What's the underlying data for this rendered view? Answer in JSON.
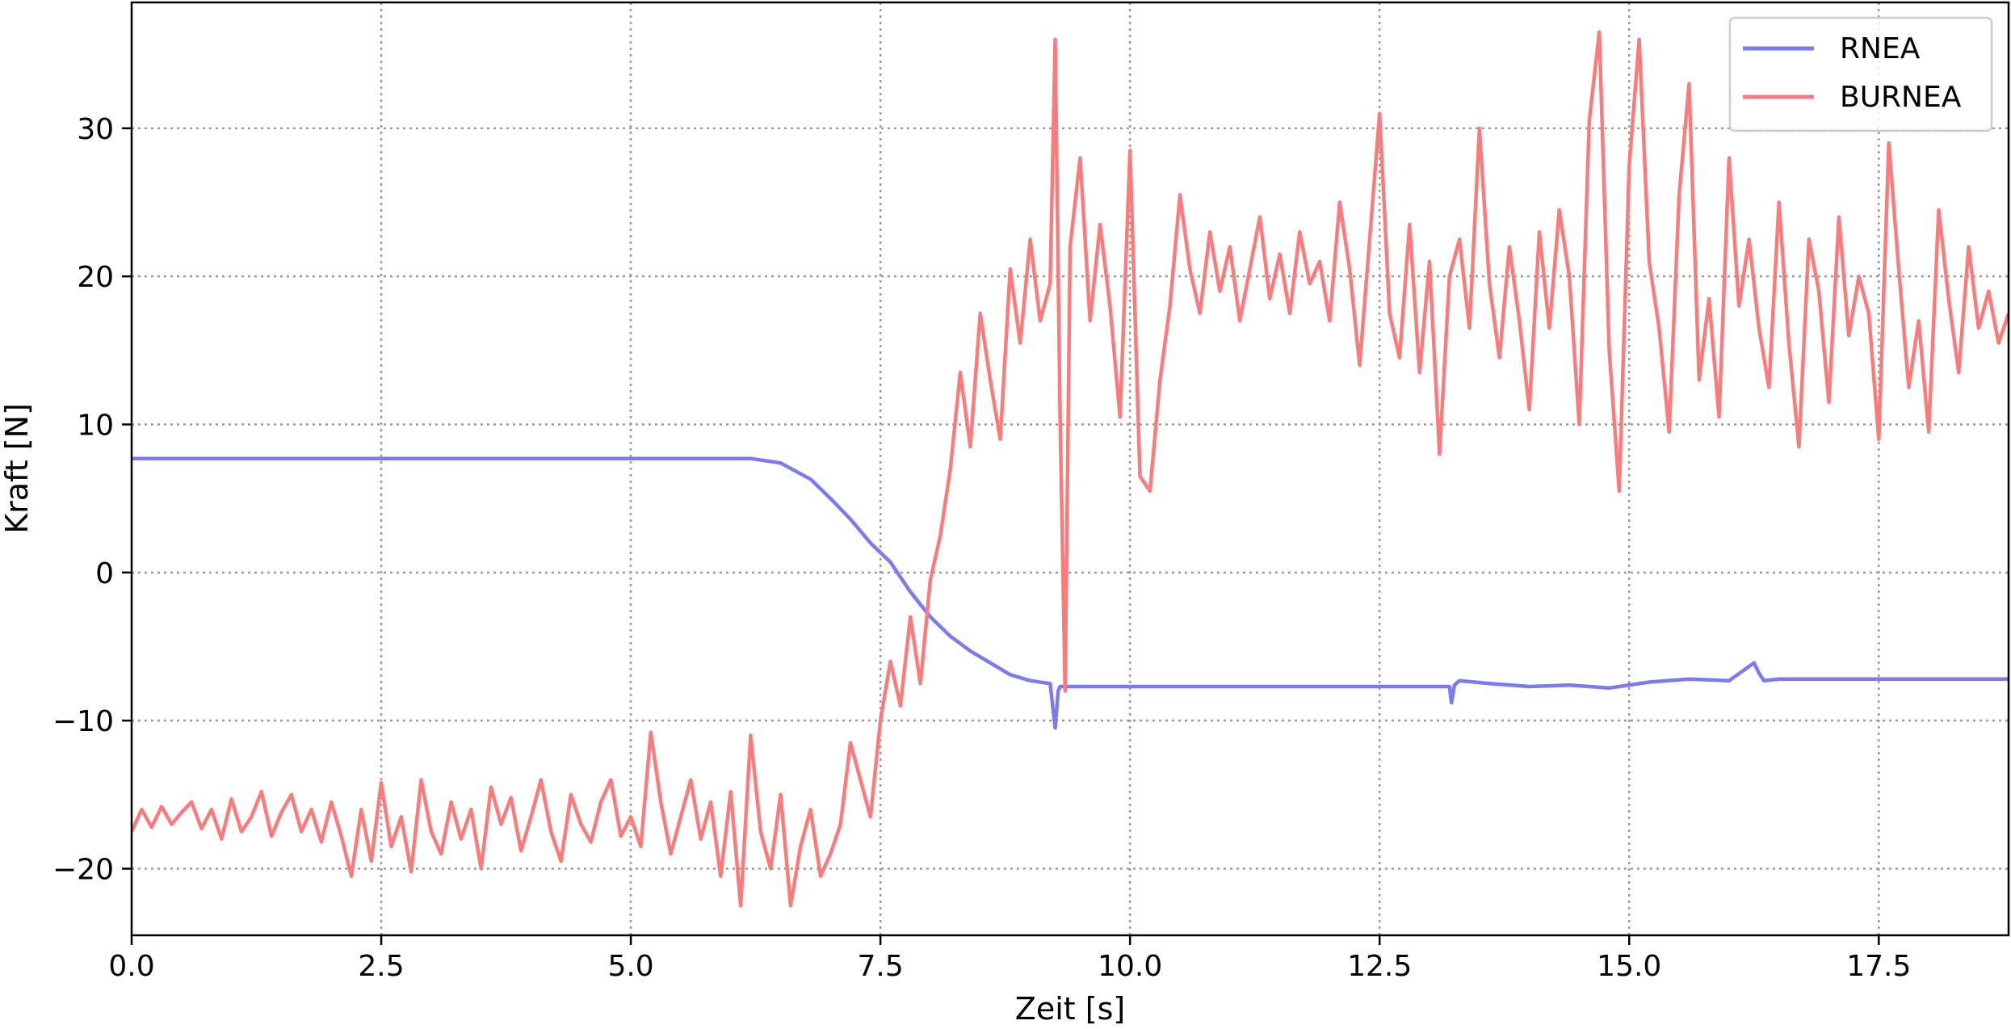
{
  "chart_data": {
    "type": "line",
    "title": "",
    "xlabel": "Zeit [s]",
    "ylabel": "Kraft [N]",
    "xlim": [
      0,
      18.8
    ],
    "ylim": [
      -24.5,
      38.5
    ],
    "xticks": [
      0.0,
      2.5,
      5.0,
      7.5,
      10.0,
      12.5,
      15.0,
      17.5
    ],
    "xtick_labels": [
      "0.0",
      "2.5",
      "5.0",
      "7.5",
      "10.0",
      "12.5",
      "15.0",
      "17.5"
    ],
    "yticks": [
      -20,
      -10,
      0,
      10,
      20,
      30
    ],
    "ytick_labels": [
      "−20",
      "−10",
      "0",
      "10",
      "20",
      "30"
    ],
    "grid": true,
    "legend_position": "top-right",
    "series": [
      {
        "name": "RNEA",
        "color": "#7b7bef",
        "x": [
          0.0,
          6.2,
          6.5,
          6.8,
          7.0,
          7.2,
          7.4,
          7.6,
          7.8,
          8.0,
          8.2,
          8.4,
          8.6,
          8.8,
          9.0,
          9.2,
          9.25,
          9.28,
          9.3,
          9.35,
          10.0,
          13.2,
          13.22,
          13.25,
          13.3,
          13.6,
          14.0,
          14.4,
          14.8,
          15.2,
          15.6,
          16.0,
          16.25,
          16.3,
          16.35,
          16.5,
          18.8
        ],
        "y": [
          7.7,
          7.7,
          7.4,
          6.3,
          5.0,
          3.6,
          2.0,
          0.7,
          -1.3,
          -3.0,
          -4.3,
          -5.3,
          -6.1,
          -6.9,
          -7.3,
          -7.5,
          -10.5,
          -8.0,
          -7.7,
          -7.7,
          -7.7,
          -7.7,
          -8.8,
          -7.6,
          -7.3,
          -7.5,
          -7.7,
          -7.6,
          -7.8,
          -7.4,
          -7.2,
          -7.3,
          -6.1,
          -6.8,
          -7.3,
          -7.2,
          -7.2
        ]
      },
      {
        "name": "BURNEA",
        "color": "#fa7b7b",
        "x": [
          0.0,
          0.1,
          0.2,
          0.3,
          0.4,
          0.5,
          0.6,
          0.7,
          0.8,
          0.9,
          1.0,
          1.1,
          1.2,
          1.3,
          1.4,
          1.5,
          1.6,
          1.7,
          1.8,
          1.9,
          2.0,
          2.1,
          2.2,
          2.3,
          2.4,
          2.5,
          2.6,
          2.7,
          2.8,
          2.9,
          3.0,
          3.1,
          3.2,
          3.3,
          3.4,
          3.5,
          3.6,
          3.7,
          3.8,
          3.9,
          4.0,
          4.1,
          4.2,
          4.3,
          4.4,
          4.5,
          4.6,
          4.7,
          4.8,
          4.9,
          5.0,
          5.1,
          5.2,
          5.3,
          5.4,
          5.5,
          5.6,
          5.7,
          5.8,
          5.9,
          6.0,
          6.1,
          6.2,
          6.3,
          6.4,
          6.5,
          6.6,
          6.7,
          6.8,
          6.9,
          7.0,
          7.1,
          7.2,
          7.3,
          7.4,
          7.5,
          7.6,
          7.7,
          7.8,
          7.9,
          8.0,
          8.1,
          8.2,
          8.3,
          8.4,
          8.5,
          8.6,
          8.7,
          8.8,
          8.9,
          9.0,
          9.1,
          9.2,
          9.25,
          9.3,
          9.35,
          9.4,
          9.5,
          9.6,
          9.7,
          9.8,
          9.9,
          10.0,
          10.1,
          10.2,
          10.3,
          10.4,
          10.5,
          10.6,
          10.7,
          10.8,
          10.9,
          11.0,
          11.1,
          11.2,
          11.3,
          11.4,
          11.5,
          11.6,
          11.7,
          11.8,
          11.9,
          12.0,
          12.1,
          12.2,
          12.3,
          12.4,
          12.5,
          12.6,
          12.7,
          12.8,
          12.9,
          13.0,
          13.1,
          13.2,
          13.3,
          13.4,
          13.5,
          13.6,
          13.7,
          13.8,
          13.9,
          14.0,
          14.1,
          14.2,
          14.3,
          14.4,
          14.5,
          14.6,
          14.7,
          14.8,
          14.9,
          15.0,
          15.1,
          15.2,
          15.3,
          15.4,
          15.5,
          15.6,
          15.7,
          15.8,
          15.9,
          16.0,
          16.1,
          16.2,
          16.3,
          16.4,
          16.5,
          16.6,
          16.7,
          16.8,
          16.9,
          17.0,
          17.1,
          17.2,
          17.3,
          17.4,
          17.5,
          17.6,
          17.7,
          17.8,
          17.9,
          18.0,
          18.1,
          18.2,
          18.3,
          18.4,
          18.5,
          18.6,
          18.7,
          18.8
        ],
        "y": [
          -17.5,
          -16.0,
          -17.2,
          -15.8,
          -17.0,
          -16.2,
          -15.5,
          -17.3,
          -16.0,
          -18.0,
          -15.3,
          -17.5,
          -16.5,
          -14.8,
          -17.8,
          -16.2,
          -15.0,
          -17.5,
          -16.0,
          -18.2,
          -15.5,
          -17.8,
          -20.5,
          -16.0,
          -19.5,
          -14.2,
          -18.5,
          -16.5,
          -20.2,
          -14.0,
          -17.5,
          -19.0,
          -15.5,
          -18.0,
          -16.0,
          -20.0,
          -14.5,
          -17.0,
          -15.2,
          -18.8,
          -16.5,
          -14.0,
          -17.5,
          -19.5,
          -15.0,
          -17.0,
          -18.2,
          -15.5,
          -14.0,
          -17.8,
          -16.5,
          -18.5,
          -10.8,
          -15.5,
          -19.0,
          -16.5,
          -14.0,
          -18.0,
          -15.5,
          -20.5,
          -14.8,
          -22.5,
          -11.0,
          -17.5,
          -20.0,
          -15.0,
          -22.5,
          -18.5,
          -16.0,
          -20.5,
          -19.0,
          -17.0,
          -11.5,
          -14.0,
          -16.5,
          -10.0,
          -6.0,
          -9.0,
          -3.0,
          -7.5,
          -0.5,
          2.5,
          7.0,
          13.5,
          8.5,
          17.5,
          13.0,
          9.0,
          20.5,
          15.5,
          22.5,
          17.0,
          19.5,
          36.0,
          10.5,
          -8.0,
          22.0,
          28.0,
          17.0,
          23.5,
          18.0,
          10.5,
          28.5,
          6.5,
          5.5,
          13.0,
          18.0,
          25.5,
          20.5,
          17.5,
          23.0,
          19.0,
          22.0,
          17.0,
          20.5,
          24.0,
          18.5,
          21.5,
          17.5,
          23.0,
          19.5,
          21.0,
          17.0,
          25.0,
          20.5,
          14.0,
          22.5,
          31.0,
          17.5,
          14.5,
          23.5,
          13.5,
          21.0,
          8.0,
          20.0,
          22.5,
          16.5,
          30.0,
          19.5,
          14.5,
          22.0,
          17.0,
          11.0,
          23.0,
          16.5,
          24.5,
          20.0,
          10.0,
          30.5,
          36.5,
          15.0,
          5.5,
          27.5,
          36.0,
          21.0,
          16.5,
          9.5,
          25.5,
          33.0,
          13.0,
          18.5,
          10.5,
          28.0,
          18.0,
          22.5,
          16.5,
          12.5,
          25.0,
          15.5,
          8.5,
          22.5,
          19.0,
          11.5,
          24.0,
          16.0,
          20.0,
          17.5,
          9.0,
          29.0,
          20.5,
          12.5,
          17.0,
          9.5,
          24.5,
          18.5,
          13.5,
          22.0,
          16.5,
          19.0,
          15.5,
          17.5
        ]
      }
    ]
  }
}
